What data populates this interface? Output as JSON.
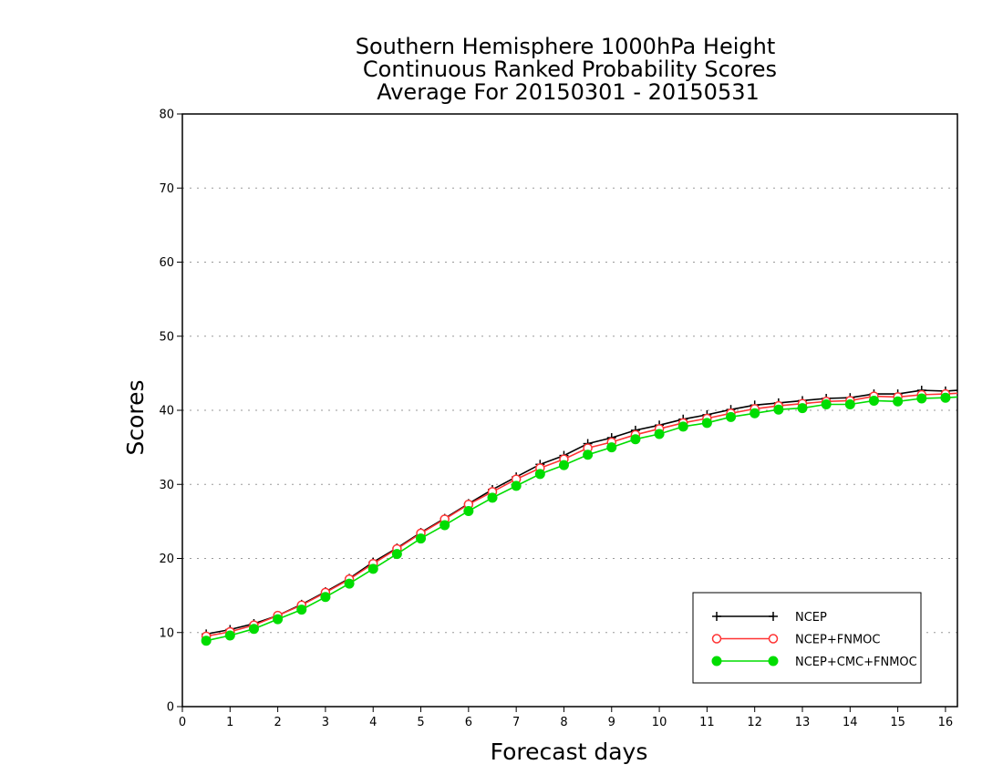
{
  "chart_data": {
    "type": "line",
    "title_lines": [
      "Southern Hemisphere 1000hPa Height",
      "Continuous Ranked Probability Scores",
      "Average For 20150301 - 20150531"
    ],
    "xlabel": "Forecast days",
    "ylabel": "Scores",
    "xlim": [
      0,
      16.25
    ],
    "ylim": [
      0,
      80
    ],
    "xticks": [
      "0",
      "1",
      "2",
      "3",
      "4",
      "5",
      "6",
      "7",
      "8",
      "9",
      "10",
      "11",
      "12",
      "13",
      "14",
      "15",
      "16"
    ],
    "yticks": [
      "0",
      "10",
      "20",
      "30",
      "40",
      "50",
      "60",
      "70",
      "80"
    ],
    "grid": "horizontal dotted",
    "legend_position": "bottom-right",
    "x": [
      0.5,
      1,
      1.5,
      2,
      2.5,
      3,
      3.5,
      4,
      4.5,
      5,
      5.5,
      6,
      6.5,
      7,
      7.5,
      8,
      8.5,
      9,
      9.5,
      10,
      10.5,
      11,
      11.5,
      12,
      12.5,
      13,
      13.5,
      14,
      14.5,
      15,
      15.5,
      16,
      16.25
    ],
    "series": [
      {
        "name": "NCEP",
        "color": "#000000",
        "marker": "plus",
        "values": [
          9.8,
          10.4,
          11.2,
          12.3,
          13.8,
          15.5,
          17.3,
          19.5,
          21.4,
          23.5,
          25.4,
          27.4,
          29.3,
          31.0,
          32.7,
          33.9,
          35.5,
          36.3,
          37.3,
          38.0,
          38.8,
          39.4,
          40.1,
          40.7,
          41.0,
          41.3,
          41.6,
          41.7,
          42.2,
          42.2,
          42.7,
          42.6,
          42.7
        ]
      },
      {
        "name": "NCEP+FNMOC",
        "color": "#ff3333",
        "marker": "open-circle",
        "values": [
          9.5,
          10.1,
          11.0,
          12.3,
          13.7,
          15.4,
          17.2,
          19.3,
          21.3,
          23.4,
          25.3,
          27.3,
          29.0,
          30.7,
          32.2,
          33.4,
          34.9,
          35.7,
          36.7,
          37.5,
          38.3,
          38.9,
          39.6,
          40.2,
          40.6,
          40.9,
          41.2,
          41.3,
          41.9,
          41.8,
          42.1,
          42.2,
          42.3
        ]
      },
      {
        "name": "NCEP+CMC+FNMOC",
        "color": "#00dd00",
        "marker": "filled-circle",
        "values": [
          8.9,
          9.6,
          10.5,
          11.8,
          13.1,
          14.8,
          16.6,
          18.6,
          20.6,
          22.7,
          24.5,
          26.4,
          28.2,
          29.8,
          31.4,
          32.6,
          34.0,
          35.0,
          36.1,
          36.8,
          37.8,
          38.3,
          39.1,
          39.6,
          40.1,
          40.3,
          40.8,
          40.8,
          41.3,
          41.2,
          41.6,
          41.7,
          41.8
        ]
      }
    ]
  }
}
